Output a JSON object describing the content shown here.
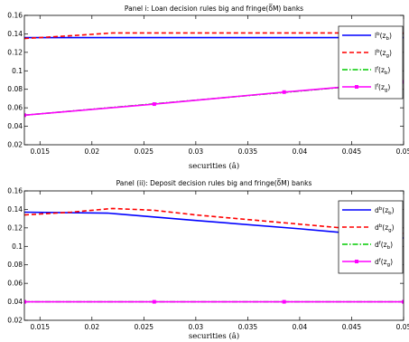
{
  "chart_data": [
    {
      "type": "line",
      "title": "Panel i: Loan decision rules big and fringe(δ̅M) banks",
      "xlabel": "securities (â)",
      "ylabel": "",
      "xlim": [
        0.0135,
        0.05
      ],
      "ylim": [
        0.02,
        0.16
      ],
      "xticks": [
        "0.015",
        "0.02",
        "0.025",
        "0.03",
        "0.035",
        "0.04",
        "0.045",
        "0.05"
      ],
      "yticks": [
        "0.02",
        "0.04",
        "0.06",
        "0.08",
        "0.1",
        "0.12",
        "0.14",
        "0.16"
      ],
      "legend_position": "top-right",
      "series": [
        {
          "name": "lᵇ(zᵦ)",
          "legend_main": "l",
          "legend_sup": "b",
          "legend_sub": "b",
          "color": "#0000ff",
          "dash": "solid",
          "marker": "none",
          "x": [
            0.0135,
            0.05
          ],
          "y": [
            0.136,
            0.136
          ]
        },
        {
          "name": "lᵇ(zᵧ)",
          "legend_main": "l",
          "legend_sup": "b",
          "legend_sub": "g",
          "color": "#ff0000",
          "dash": "dashed",
          "marker": "none",
          "x": [
            0.0135,
            0.018,
            0.022,
            0.05
          ],
          "y": [
            0.135,
            0.138,
            0.141,
            0.141
          ]
        },
        {
          "name": "lᶠ(zᵦ)",
          "legend_main": "l",
          "legend_sup": "f",
          "legend_sub": "b",
          "color": "#00cc00",
          "dash": "dashdot",
          "marker": "none",
          "x": [
            0.0135,
            0.05
          ],
          "y": [
            0.052,
            0.088
          ]
        },
        {
          "name": "lᶠ(zᵧ)",
          "legend_main": "l",
          "legend_sup": "f",
          "legend_sub": "g",
          "color": "#ff00ff",
          "dash": "solid",
          "marker": "square",
          "x": [
            0.0135,
            0.026,
            0.0385,
            0.05
          ],
          "y": [
            0.052,
            0.064,
            0.077,
            0.088
          ]
        }
      ]
    },
    {
      "type": "line",
      "title": "Panel (ii): Deposit decision rules big and fringe(δ̅M) banks",
      "xlabel": "securities (â)",
      "ylabel": "",
      "xlim": [
        0.0135,
        0.05
      ],
      "ylim": [
        0.02,
        0.16
      ],
      "xticks": [
        "0.015",
        "0.02",
        "0.025",
        "0.03",
        "0.035",
        "0.04",
        "0.045",
        "0.05"
      ],
      "yticks": [
        "0.02",
        "0.04",
        "0.06",
        "0.08",
        "0.1",
        "0.12",
        "0.14",
        "0.16"
      ],
      "legend_position": "top-right",
      "series": [
        {
          "name": "dᵇ(zᵦ)",
          "legend_main": "d",
          "legend_sup": "b",
          "legend_sub": "b",
          "color": "#0000ff",
          "dash": "solid",
          "marker": "none",
          "x": [
            0.0135,
            0.0215,
            0.03,
            0.04,
            0.05
          ],
          "y": [
            0.137,
            0.136,
            0.128,
            0.119,
            0.109
          ]
        },
        {
          "name": "dᵇ(zᵧ)",
          "legend_main": "d",
          "legend_sup": "b",
          "legend_sub": "g",
          "color": "#ff0000",
          "dash": "dashed",
          "marker": "none",
          "x": [
            0.0135,
            0.018,
            0.022,
            0.026,
            0.03,
            0.035,
            0.04,
            0.045,
            0.05
          ],
          "y": [
            0.134,
            0.137,
            0.141,
            0.139,
            0.134,
            0.129,
            0.124,
            0.119,
            0.114
          ]
        },
        {
          "name": "dᶠ(zᵦ)",
          "legend_main": "d",
          "legend_sup": "f",
          "legend_sub": "b",
          "color": "#00cc00",
          "dash": "dashdot",
          "marker": "none",
          "x": [
            0.0135,
            0.05
          ],
          "y": [
            0.04,
            0.04
          ]
        },
        {
          "name": "dᶠ(zᵧ)",
          "legend_main": "d",
          "legend_sup": "f",
          "legend_sub": "g",
          "color": "#ff00ff",
          "dash": "solid",
          "marker": "square",
          "x": [
            0.0135,
            0.026,
            0.0385,
            0.05
          ],
          "y": [
            0.04,
            0.04,
            0.04,
            0.04
          ]
        }
      ]
    }
  ]
}
